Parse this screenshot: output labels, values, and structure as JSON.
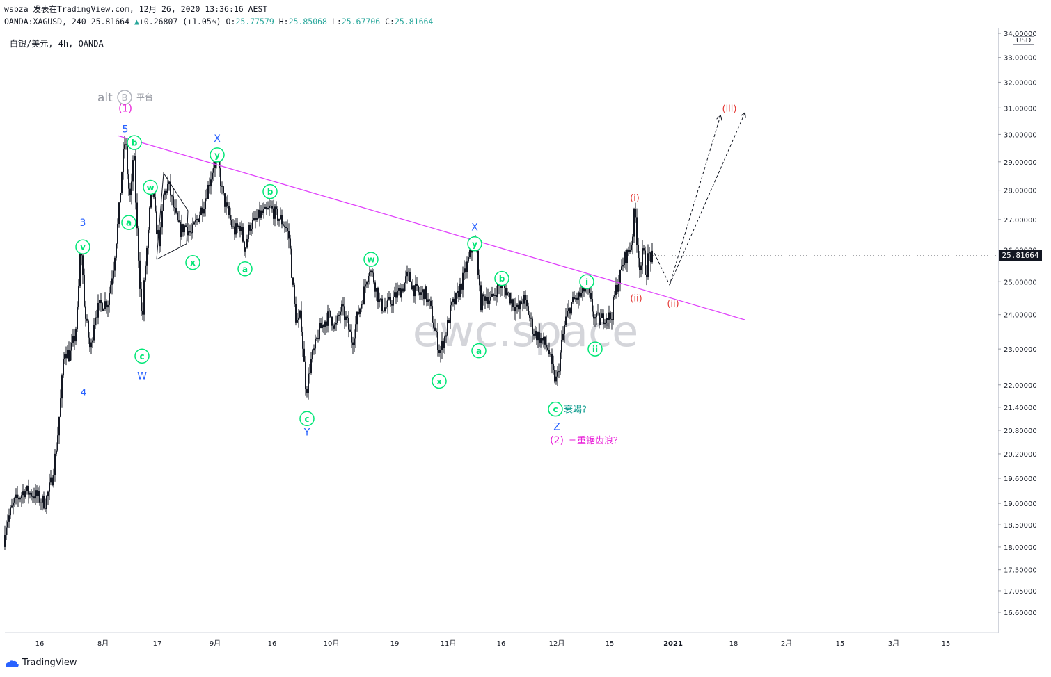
{
  "header": {
    "line1": "wsbza 发表在TradingView.com, 12月 26, 2020 13:36:16 AEST",
    "symbol_full": "OANDA:XAGUSD, 240",
    "last": "25.81664",
    "change_arrow": "▲",
    "change": "+0.26807 (+1.05%)",
    "o_label": "O:",
    "o": "25.77579",
    "h_label": "H:",
    "h": "25.85068",
    "l_label": "L:",
    "l": "25.67706",
    "c_label": "C:",
    "c": "25.81664"
  },
  "symbol_label": "白银/美元, 4h, OANDA",
  "currency_badge": "USD",
  "current_price_tag": "25.81664",
  "watermark_text": "ewc.space",
  "brand_text": "alt",
  "brand_sub": "平台",
  "brand_circle": "B",
  "footer_logo": "TradingView",
  "colors": {
    "candle": "#131722",
    "trendline": "#e040fb",
    "green_label": "#00e676",
    "blue_label": "#2962ff",
    "magenta_label": "#e91ed8",
    "red_label": "#e53935",
    "teal_text": "#009688"
  },
  "chart_data": {
    "type": "candlestick",
    "symbol": "XAGUSD",
    "timeframe": "4h",
    "y_axis_ticks": [
      "34.00000",
      "33.00000",
      "32.00000",
      "31.00000",
      "30.00000",
      "29.00000",
      "28.00000",
      "27.00000",
      "26.00000",
      "25.00000",
      "24.00000",
      "23.00000",
      "22.00000",
      "21.40000",
      "20.80000",
      "20.20000",
      "19.60000",
      "19.00000",
      "18.50000",
      "18.00000",
      "17.50000",
      "17.05000",
      "16.60000"
    ],
    "x_axis_ticks": [
      "16",
      "8月",
      "17",
      "9月",
      "16",
      "10月",
      "19",
      "11月",
      "16",
      "12月",
      "15",
      "2021",
      "18",
      "2月",
      "15",
      "3月",
      "15"
    ],
    "ylim": [
      16.0,
      34.5
    ],
    "log_scale": true,
    "price_path": [
      [
        0,
        18.0
      ],
      [
        8,
        18.5
      ],
      [
        20,
        19.0
      ],
      [
        35,
        19.3
      ],
      [
        50,
        19.2
      ],
      [
        65,
        19.0
      ],
      [
        75,
        19.6
      ],
      [
        82,
        20.5
      ],
      [
        88,
        21.8
      ],
      [
        92,
        23.0
      ],
      [
        100,
        22.8
      ],
      [
        108,
        23.4
      ],
      [
        112,
        24.3
      ],
      [
        116,
        26.3
      ],
      [
        122,
        24.0
      ],
      [
        126,
        23.5
      ],
      [
        130,
        22.9
      ],
      [
        136,
        24.0
      ],
      [
        145,
        24.3
      ],
      [
        155,
        24.4
      ],
      [
        163,
        25.5
      ],
      [
        170,
        27.0
      ],
      [
        176,
        29.0
      ],
      [
        180,
        29.9
      ],
      [
        184,
        28.2
      ],
      [
        188,
        27.6
      ],
      [
        192,
        29.6
      ],
      [
        196,
        27.0
      ],
      [
        200,
        25.4
      ],
      [
        204,
        23.6
      ],
      [
        208,
        25.3
      ],
      [
        213,
        26.5
      ],
      [
        218,
        28.3
      ],
      [
        224,
        26.8
      ],
      [
        230,
        26.2
      ],
      [
        235,
        27.8
      ],
      [
        242,
        28.2
      ],
      [
        250,
        27.3
      ],
      [
        258,
        26.6
      ],
      [
        266,
        26.8
      ],
      [
        275,
        26.5
      ],
      [
        283,
        27.0
      ],
      [
        292,
        27.5
      ],
      [
        300,
        28.2
      ],
      [
        307,
        28.9
      ],
      [
        313,
        29.0
      ],
      [
        320,
        27.8
      ],
      [
        328,
        27.2
      ],
      [
        336,
        26.6
      ],
      [
        345,
        26.8
      ],
      [
        352,
        26.0
      ],
      [
        358,
        26.8
      ],
      [
        366,
        26.9
      ],
      [
        374,
        27.2
      ],
      [
        382,
        27.2
      ],
      [
        388,
        27.4
      ],
      [
        395,
        27.2
      ],
      [
        403,
        27.0
      ],
      [
        410,
        26.8
      ],
      [
        416,
        26.3
      ],
      [
        420,
        25.0
      ],
      [
        424,
        24.0
      ],
      [
        428,
        23.7
      ],
      [
        432,
        24.0
      ],
      [
        436,
        22.8
      ],
      [
        440,
        21.8
      ],
      [
        446,
        22.6
      ],
      [
        452,
        23.0
      ],
      [
        458,
        23.5
      ],
      [
        466,
        23.8
      ],
      [
        474,
        24.0
      ],
      [
        482,
        23.6
      ],
      [
        490,
        24.2
      ],
      [
        498,
        23.8
      ],
      [
        506,
        23.2
      ],
      [
        514,
        24.0
      ],
      [
        522,
        24.6
      ],
      [
        530,
        25.5
      ],
      [
        538,
        25.0
      ],
      [
        546,
        24.3
      ],
      [
        554,
        24.2
      ],
      [
        562,
        24.4
      ],
      [
        570,
        24.6
      ],
      [
        578,
        24.8
      ],
      [
        586,
        25.2
      ],
      [
        594,
        24.8
      ],
      [
        602,
        24.6
      ],
      [
        610,
        24.7
      ],
      [
        618,
        24.2
      ],
      [
        625,
        23.5
      ],
      [
        632,
        22.9
      ],
      [
        640,
        23.4
      ],
      [
        648,
        24.2
      ],
      [
        656,
        24.5
      ],
      [
        664,
        25.0
      ],
      [
        672,
        25.6
      ],
      [
        680,
        26.2
      ],
      [
        686,
        25.8
      ],
      [
        690,
        24.3
      ],
      [
        698,
        24.6
      ],
      [
        706,
        24.4
      ],
      [
        714,
        24.8
      ],
      [
        720,
        24.9
      ],
      [
        728,
        24.7
      ],
      [
        736,
        24.4
      ],
      [
        744,
        24.1
      ],
      [
        752,
        24.5
      ],
      [
        760,
        24.0
      ],
      [
        766,
        23.5
      ],
      [
        772,
        23.4
      ],
      [
        780,
        23.2
      ],
      [
        788,
        23.0
      ],
      [
        794,
        22.3
      ],
      [
        800,
        22.1
      ],
      [
        806,
        23.0
      ],
      [
        812,
        23.8
      ],
      [
        820,
        24.3
      ],
      [
        828,
        24.5
      ],
      [
        836,
        24.6
      ],
      [
        842,
        24.9
      ],
      [
        848,
        24.4
      ],
      [
        854,
        23.9
      ],
      [
        862,
        23.8
      ],
      [
        870,
        24.0
      ],
      [
        878,
        23.9
      ],
      [
        884,
        24.7
      ],
      [
        890,
        25.1
      ],
      [
        896,
        25.7
      ],
      [
        902,
        25.9
      ],
      [
        908,
        26.3
      ],
      [
        912,
        27.4
      ],
      [
        916,
        26.0
      ],
      [
        920,
        25.4
      ],
      [
        924,
        26.0
      ],
      [
        928,
        25.2
      ],
      [
        932,
        25.9
      ],
      [
        936,
        25.7
      ],
      [
        938,
        25.8
      ]
    ],
    "trendline": {
      "from": [
        170,
        29.95
      ],
      "to": [
        1070,
        23.85
      ]
    },
    "triangle": [
      [
        225,
        25.7
      ],
      [
        235,
        28.6
      ],
      [
        270,
        27.3
      ],
      [
        268,
        26.2
      ],
      [
        225,
        25.7
      ]
    ],
    "projections": [
      {
        "from": [
          940,
          25.9
        ],
        "via": [
          962,
          24.9
        ],
        "to": [
          1035,
          30.7
        ]
      },
      {
        "from": [
          962,
          24.9
        ],
        "to": [
          1070,
          30.8
        ]
      }
    ],
    "wave_labels": [
      {
        "text": "(1)",
        "x": 180,
        "y": 31.0,
        "color": "magenta",
        "circle": false,
        "size": 14
      },
      {
        "text": "5",
        "x": 180,
        "y": 30.2,
        "color": "blue",
        "circle": false,
        "size": 14
      },
      {
        "text": "b",
        "x": 193,
        "y": 29.7,
        "color": "green",
        "circle": true
      },
      {
        "text": "w",
        "x": 216,
        "y": 28.1,
        "color": "green",
        "circle": true
      },
      {
        "text": "a",
        "x": 185,
        "y": 26.9,
        "color": "green",
        "circle": true
      },
      {
        "text": "3",
        "x": 119,
        "y": 26.9,
        "color": "blue",
        "circle": false,
        "size": 14
      },
      {
        "text": "v",
        "x": 119,
        "y": 26.1,
        "color": "green",
        "circle": true
      },
      {
        "text": "c",
        "x": 204,
        "y": 22.8,
        "color": "green",
        "circle": true
      },
      {
        "text": "W",
        "x": 204,
        "y": 22.25,
        "color": "blue",
        "circle": false,
        "size": 14
      },
      {
        "text": "4",
        "x": 120,
        "y": 21.8,
        "color": "blue",
        "circle": false,
        "size": 14
      },
      {
        "text": "X",
        "x": 312,
        "y": 29.85,
        "color": "blue",
        "circle": false,
        "size": 14
      },
      {
        "text": "y",
        "x": 312,
        "y": 29.25,
        "color": "green",
        "circle": true
      },
      {
        "text": "x",
        "x": 277,
        "y": 25.6,
        "color": "green",
        "circle": true
      },
      {
        "text": "b",
        "x": 388,
        "y": 27.95,
        "color": "green",
        "circle": true
      },
      {
        "text": "a",
        "x": 352,
        "y": 25.4,
        "color": "green",
        "circle": true
      },
      {
        "text": "c",
        "x": 441,
        "y": 21.1,
        "color": "green",
        "circle": true
      },
      {
        "text": "Y",
        "x": 441,
        "y": 20.75,
        "color": "blue",
        "circle": false,
        "size": 14
      },
      {
        "text": "w",
        "x": 533,
        "y": 25.7,
        "color": "green",
        "circle": true
      },
      {
        "text": "x",
        "x": 631,
        "y": 22.1,
        "color": "green",
        "circle": true
      },
      {
        "text": "X",
        "x": 682,
        "y": 26.75,
        "color": "blue",
        "circle": false,
        "size": 14
      },
      {
        "text": "y",
        "x": 682,
        "y": 26.2,
        "color": "green",
        "circle": true
      },
      {
        "text": "b",
        "x": 721,
        "y": 25.1,
        "color": "green",
        "circle": true
      },
      {
        "text": "a",
        "x": 688,
        "y": 22.95,
        "color": "green",
        "circle": true
      },
      {
        "text": "c",
        "x": 798,
        "y": 21.35,
        "color": "green",
        "circle": true
      },
      {
        "text": "Z",
        "x": 800,
        "y": 20.9,
        "color": "blue",
        "circle": false,
        "size": 14
      },
      {
        "text": "i",
        "x": 843,
        "y": 25.0,
        "color": "green",
        "circle": true
      },
      {
        "text": "ii",
        "x": 855,
        "y": 23.0,
        "color": "green",
        "circle": true
      },
      {
        "text": "(i)",
        "x": 912,
        "y": 27.75,
        "color": "red",
        "circle": false,
        "size": 13
      },
      {
        "text": "(ii)",
        "x": 914,
        "y": 24.5,
        "color": "red",
        "circle": false,
        "size": 13
      },
      {
        "text": "(ii)",
        "x": 967,
        "y": 24.35,
        "color": "red",
        "circle": false,
        "size": 13
      },
      {
        "text": "(iii)",
        "x": 1048,
        "y": 31.0,
        "color": "red",
        "circle": false,
        "size": 13
      },
      {
        "text": "(2)",
        "x": 800,
        "y": 20.55,
        "color": "magenta",
        "circle": false,
        "size": 14
      }
    ],
    "annotations": [
      {
        "text": "衰竭?",
        "x": 810,
        "y": 21.35,
        "color": "teal"
      },
      {
        "text": "三重锯齿浪？",
        "x": 816,
        "y": 20.55,
        "color": "magenta"
      }
    ]
  }
}
